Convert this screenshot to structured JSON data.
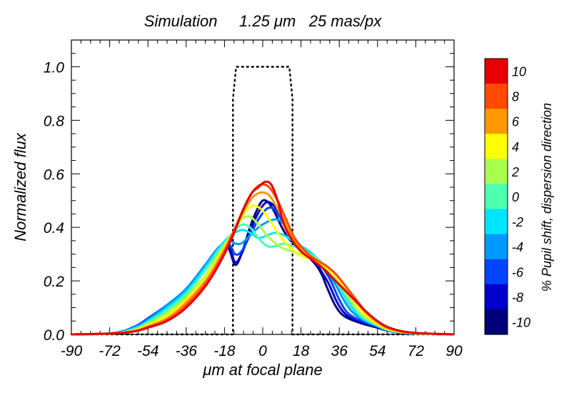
{
  "chart_data": {
    "type": "line",
    "title": "Simulation     1.25 μm   25 mas/px",
    "xlabel": "μm at focal plane",
    "ylabel": "Normalized flux",
    "xlim": [
      -90,
      90
    ],
    "ylim": [
      0,
      1.1
    ],
    "xticks": [
      -90,
      -72,
      -54,
      -36,
      -18,
      0,
      18,
      36,
      54,
      72,
      90
    ],
    "xtick_labels": [
      "-90",
      "-72",
      "-54",
      "-36",
      "-18",
      "0",
      "18",
      "36",
      "54",
      "72",
      "90"
    ],
    "yticks": [
      0,
      0.2,
      0.4,
      0.6,
      0.8,
      1.0
    ],
    "ytick_labels": [
      "0.0",
      "0.2",
      "0.4",
      "0.6",
      "0.8",
      "1.0"
    ],
    "grid": false,
    "slit_profile": {
      "name": "slit",
      "style": "dotted",
      "x": [
        -90,
        -14,
        -14,
        -12.5,
        12.5,
        14,
        14,
        90
      ],
      "y": [
        0,
        0,
        0.88,
        1.0,
        1.0,
        0.88,
        0,
        0
      ]
    },
    "colorbar": {
      "label": "% Pupil shift, dispersion direction",
      "levels": [
        "10",
        "8",
        "6",
        "4",
        "2",
        "0",
        "-2",
        "-4",
        "-6",
        "-8",
        "-10"
      ],
      "colors": [
        "#e60000",
        "#ff4a00",
        "#ff9900",
        "#ffff00",
        "#a8ff4d",
        "#4dffb0",
        "#00e5ff",
        "#0099ff",
        "#0044ff",
        "#0000cc",
        "#00007a"
      ]
    },
    "series": [
      {
        "name": "-10",
        "color": "#00007a",
        "x": [
          -90,
          -70,
          -60,
          -54,
          -45,
          -36,
          -27,
          -20,
          -16,
          -13,
          -10,
          -6,
          -3,
          0,
          3,
          6,
          9,
          12,
          16,
          20,
          25,
          28,
          30,
          34,
          38,
          45,
          54,
          60,
          70,
          90
        ],
        "y": [
          0,
          0.005,
          0.03,
          0.06,
          0.11,
          0.17,
          0.26,
          0.33,
          0.32,
          0.26,
          0.3,
          0.4,
          0.46,
          0.5,
          0.49,
          0.45,
          0.4,
          0.36,
          0.33,
          0.3,
          0.26,
          0.22,
          0.18,
          0.11,
          0.07,
          0.045,
          0.025,
          0.012,
          0.004,
          0
        ]
      },
      {
        "name": "-8",
        "color": "#0000cc",
        "x": [
          -90,
          -70,
          -60,
          -54,
          -45,
          -36,
          -27,
          -20,
          -16,
          -13,
          -10,
          -6,
          -3,
          1,
          4,
          7,
          10,
          13,
          17,
          21,
          25,
          28,
          31,
          35,
          39,
          45,
          54,
          60,
          70,
          90
        ],
        "y": [
          0,
          0.005,
          0.03,
          0.06,
          0.11,
          0.17,
          0.26,
          0.33,
          0.33,
          0.27,
          0.3,
          0.38,
          0.44,
          0.49,
          0.49,
          0.46,
          0.41,
          0.37,
          0.33,
          0.3,
          0.27,
          0.23,
          0.19,
          0.12,
          0.075,
          0.05,
          0.028,
          0.012,
          0.004,
          0
        ]
      },
      {
        "name": "-6",
        "color": "#0044ff",
        "x": [
          -90,
          -70,
          -60,
          -54,
          -45,
          -36,
          -27,
          -20,
          -16,
          -13,
          -10,
          -6,
          -2,
          2,
          5,
          8,
          11,
          14,
          18,
          22,
          26,
          29,
          32,
          36,
          40,
          46,
          54,
          60,
          70,
          90
        ],
        "y": [
          0,
          0.005,
          0.03,
          0.06,
          0.11,
          0.17,
          0.26,
          0.33,
          0.34,
          0.3,
          0.31,
          0.37,
          0.43,
          0.47,
          0.47,
          0.44,
          0.4,
          0.36,
          0.33,
          0.3,
          0.27,
          0.24,
          0.2,
          0.13,
          0.08,
          0.052,
          0.03,
          0.013,
          0.004,
          0
        ]
      },
      {
        "name": "-4",
        "color": "#0099ff",
        "x": [
          -90,
          -70,
          -60,
          -54,
          -45,
          -36,
          -27,
          -20,
          -16,
          -13,
          -10,
          -6,
          -2,
          2,
          6,
          9,
          12,
          15,
          18,
          22,
          26,
          30,
          34,
          38,
          42,
          47,
          54,
          60,
          70,
          90
        ],
        "y": [
          0,
          0.005,
          0.028,
          0.055,
          0.11,
          0.17,
          0.26,
          0.33,
          0.35,
          0.34,
          0.34,
          0.37,
          0.4,
          0.42,
          0.43,
          0.42,
          0.39,
          0.36,
          0.33,
          0.3,
          0.27,
          0.24,
          0.19,
          0.13,
          0.085,
          0.055,
          0.03,
          0.013,
          0.004,
          0
        ]
      },
      {
        "name": "-2",
        "color": "#00e5ff",
        "x": [
          -90,
          -70,
          -60,
          -54,
          -45,
          -36,
          -27,
          -20,
          -15,
          -10,
          -6,
          -2,
          2,
          6,
          10,
          14,
          18,
          22,
          26,
          30,
          34,
          38,
          42,
          47,
          54,
          60,
          70,
          90
        ],
        "y": [
          0,
          0.004,
          0.024,
          0.05,
          0.1,
          0.16,
          0.25,
          0.33,
          0.37,
          0.39,
          0.38,
          0.36,
          0.37,
          0.38,
          0.37,
          0.35,
          0.33,
          0.31,
          0.28,
          0.25,
          0.21,
          0.15,
          0.1,
          0.06,
          0.032,
          0.014,
          0.004,
          0
        ]
      },
      {
        "name": "0",
        "color": "#4dffb0",
        "x": [
          -90,
          -70,
          -60,
          -54,
          -45,
          -36,
          -27,
          -20,
          -14,
          -10,
          -6,
          -2,
          2,
          6,
          10,
          14,
          18,
          22,
          26,
          30,
          34,
          38,
          42,
          47,
          54,
          60,
          70,
          90
        ],
        "y": [
          0,
          0.004,
          0.02,
          0.045,
          0.09,
          0.15,
          0.24,
          0.32,
          0.38,
          0.41,
          0.4,
          0.36,
          0.33,
          0.33,
          0.34,
          0.33,
          0.32,
          0.3,
          0.28,
          0.25,
          0.21,
          0.16,
          0.11,
          0.065,
          0.034,
          0.015,
          0.005,
          0
        ]
      },
      {
        "name": "2",
        "color": "#a8ff4d",
        "x": [
          -90,
          -70,
          -60,
          -54,
          -45,
          -36,
          -27,
          -20,
          -14,
          -10,
          -6,
          -2,
          2,
          6,
          10,
          14,
          18,
          22,
          26,
          30,
          34,
          38,
          42,
          47,
          54,
          60,
          70,
          90
        ],
        "y": [
          0,
          0.004,
          0.018,
          0.04,
          0.08,
          0.14,
          0.22,
          0.31,
          0.38,
          0.43,
          0.44,
          0.41,
          0.37,
          0.34,
          0.32,
          0.31,
          0.3,
          0.29,
          0.27,
          0.25,
          0.22,
          0.17,
          0.12,
          0.07,
          0.036,
          0.016,
          0.005,
          0
        ]
      },
      {
        "name": "4",
        "color": "#ffff00",
        "x": [
          -90,
          -70,
          -60,
          -54,
          -45,
          -36,
          -27,
          -20,
          -14,
          -9,
          -5,
          -1,
          3,
          7,
          11,
          15,
          19,
          23,
          27,
          31,
          35,
          39,
          43,
          48,
          54,
          60,
          70,
          90
        ],
        "y": [
          0,
          0.004,
          0.016,
          0.035,
          0.07,
          0.13,
          0.21,
          0.3,
          0.38,
          0.45,
          0.48,
          0.47,
          0.43,
          0.38,
          0.34,
          0.31,
          0.29,
          0.28,
          0.26,
          0.24,
          0.21,
          0.17,
          0.125,
          0.075,
          0.04,
          0.018,
          0.005,
          0
        ]
      },
      {
        "name": "6",
        "color": "#ff9900",
        "x": [
          -90,
          -70,
          -60,
          -54,
          -45,
          -36,
          -27,
          -20,
          -14,
          -9,
          -5,
          -1,
          3,
          7,
          11,
          15,
          19,
          23,
          27,
          31,
          35,
          39,
          43,
          48,
          54,
          60,
          70,
          90
        ],
        "y": [
          0,
          0.004,
          0.014,
          0.03,
          0.06,
          0.12,
          0.2,
          0.29,
          0.38,
          0.46,
          0.51,
          0.53,
          0.52,
          0.47,
          0.41,
          0.35,
          0.31,
          0.29,
          0.27,
          0.25,
          0.22,
          0.18,
          0.135,
          0.085,
          0.045,
          0.02,
          0.006,
          0
        ]
      },
      {
        "name": "8",
        "color": "#ff4a00",
        "x": [
          -90,
          -70,
          -60,
          -54,
          -45,
          -36,
          -27,
          -20,
          -14,
          -9,
          -5,
          -1,
          3,
          7,
          11,
          15,
          19,
          23,
          27,
          31,
          35,
          39,
          43,
          48,
          54,
          60,
          70,
          90
        ],
        "y": [
          0,
          0.004,
          0.012,
          0.028,
          0.055,
          0.11,
          0.19,
          0.28,
          0.38,
          0.47,
          0.53,
          0.56,
          0.55,
          0.5,
          0.43,
          0.36,
          0.32,
          0.29,
          0.27,
          0.25,
          0.22,
          0.18,
          0.14,
          0.09,
          0.048,
          0.022,
          0.006,
          0
        ]
      },
      {
        "name": "10",
        "color": "#e60000",
        "x": [
          -90,
          -70,
          -60,
          -54,
          -45,
          -36,
          -27,
          -20,
          -14,
          -9,
          -5,
          -2,
          1,
          4,
          7,
          10,
          14,
          18,
          23,
          28,
          33,
          38,
          43,
          48,
          54,
          60,
          70,
          90
        ],
        "y": [
          0,
          0.004,
          0.012,
          0.025,
          0.05,
          0.1,
          0.18,
          0.27,
          0.37,
          0.47,
          0.53,
          0.55,
          0.57,
          0.56,
          0.5,
          0.41,
          0.35,
          0.31,
          0.28,
          0.25,
          0.21,
          0.17,
          0.13,
          0.09,
          0.05,
          0.024,
          0.007,
          0
        ]
      }
    ]
  }
}
